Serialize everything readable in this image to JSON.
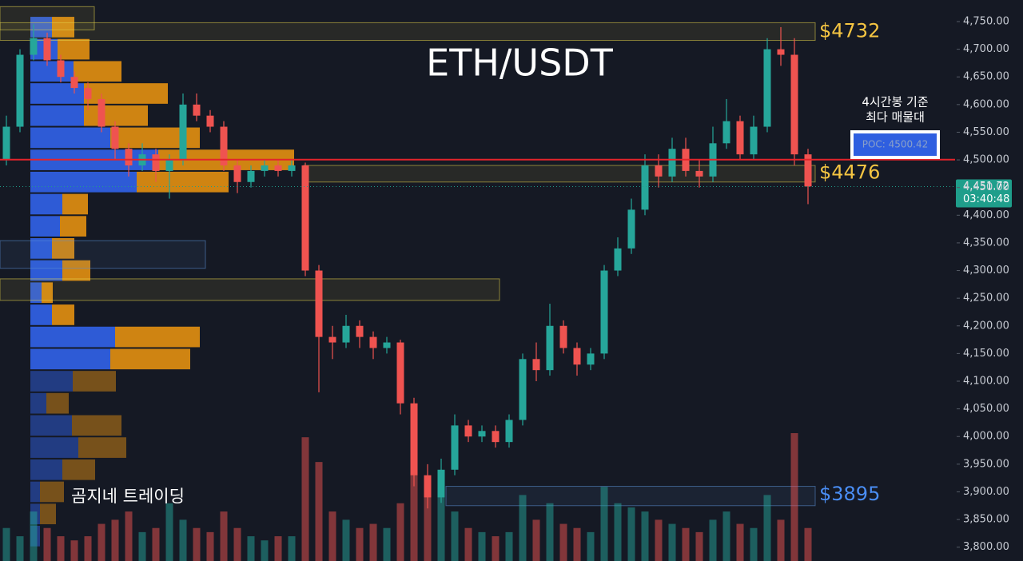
{
  "chart_data": {
    "type": "candlestick",
    "title": "ETH/USDT",
    "open": [
      4500,
      4560,
      4690,
      4720,
      4680,
      4650,
      4630,
      4610,
      4560,
      4520,
      4490,
      4510,
      4480,
      4500,
      4600,
      4580,
      4560,
      4490,
      4460,
      4480,
      4490,
      4480,
      4490,
      4300,
      4180,
      4170,
      4200,
      4180,
      4160,
      4170,
      4060,
      3930,
      3890,
      3940,
      4020,
      4000,
      4010,
      3990,
      4030,
      4140,
      4120,
      4200,
      4160,
      4130,
      4150,
      4300,
      4340,
      4410,
      4490,
      4470,
      4520,
      4480,
      4470,
      4530,
      4570,
      4510,
      4560,
      4700,
      4690,
      4510
    ],
    "high": [
      4580,
      4700,
      4745,
      4730,
      4690,
      4660,
      4640,
      4620,
      4570,
      4530,
      4530,
      4520,
      4510,
      4620,
      4620,
      4590,
      4570,
      4500,
      4490,
      4500,
      4500,
      4500,
      4495,
      4310,
      4200,
      4220,
      4210,
      4190,
      4180,
      4175,
      4070,
      3950,
      3960,
      4040,
      4030,
      4020,
      4020,
      4040,
      4150,
      4170,
      4240,
      4210,
      4170,
      4160,
      4310,
      4360,
      4430,
      4510,
      4510,
      4540,
      4540,
      4500,
      4560,
      4610,
      4580,
      4580,
      4720,
      4740,
      4720,
      4520
    ],
    "low": [
      4490,
      4550,
      4680,
      4670,
      4640,
      4620,
      4590,
      4550,
      4500,
      4470,
      4480,
      4460,
      4430,
      4490,
      4570,
      4550,
      4480,
      4440,
      4450,
      4470,
      4470,
      4470,
      4290,
      4080,
      4140,
      4160,
      4160,
      4140,
      4150,
      4040,
      3910,
      3870,
      3880,
      3930,
      3990,
      3990,
      3980,
      3980,
      4020,
      4100,
      4110,
      4150,
      4110,
      4120,
      4140,
      4290,
      4330,
      4400,
      4450,
      4460,
      4470,
      4450,
      4460,
      4520,
      4500,
      4500,
      4550,
      4670,
      4490,
      4420
    ],
    "close": [
      4560,
      4690,
      4720,
      4680,
      4650,
      4630,
      4610,
      4560,
      4520,
      4490,
      4510,
      4480,
      4500,
      4600,
      4580,
      4560,
      4490,
      4460,
      4480,
      4490,
      4480,
      4490,
      4300,
      4180,
      4170,
      4200,
      4180,
      4160,
      4170,
      4060,
      3930,
      3890,
      3940,
      4020,
      4000,
      4010,
      3990,
      4030,
      4140,
      4120,
      4200,
      4160,
      4130,
      4150,
      4300,
      4340,
      4410,
      4490,
      4470,
      4520,
      4480,
      4470,
      4530,
      4570,
      4510,
      4560,
      4700,
      4690,
      4510,
      4452
    ],
    "volume": [
      40,
      30,
      60,
      40,
      30,
      25,
      30,
      45,
      50,
      60,
      35,
      40,
      70,
      50,
      40,
      35,
      60,
      40,
      30,
      25,
      30,
      30,
      150,
      120,
      60,
      50,
      40,
      45,
      40,
      70,
      110,
      100,
      80,
      60,
      40,
      35,
      30,
      35,
      80,
      50,
      70,
      45,
      40,
      35,
      90,
      70,
      65,
      60,
      50,
      45,
      40,
      35,
      50,
      60,
      45,
      40,
      80,
      50,
      155,
      40
    ],
    "up_color": "#26a69a",
    "down_color": "#ef5350",
    "ylim": [
      3775,
      4789
    ],
    "yticks": [
      {
        "value": 4750,
        "label": "4,750.00"
      },
      {
        "value": 4700,
        "label": "4,700.00"
      },
      {
        "value": 4650,
        "label": "4,650.00"
      },
      {
        "value": 4600,
        "label": "4,600.00"
      },
      {
        "value": 4550,
        "label": "4,550.00"
      },
      {
        "value": 4500,
        "label": "4,500.00"
      },
      {
        "value": 4450,
        "label": "4,450.00"
      },
      {
        "value": 4400,
        "label": "4,400.00"
      },
      {
        "value": 4350,
        "label": "4,350.00"
      },
      {
        "value": 4300,
        "label": "4,300.00"
      },
      {
        "value": 4250,
        "label": "4,250.00"
      },
      {
        "value": 4200,
        "label": "4,200.00"
      },
      {
        "value": 4150,
        "label": "4,150.00"
      },
      {
        "value": 4100,
        "label": "4,100.00"
      },
      {
        "value": 4050,
        "label": "4,050.00"
      },
      {
        "value": 4000,
        "label": "4,000.00"
      },
      {
        "value": 3950,
        "label": "3,950.00"
      },
      {
        "value": 3900,
        "label": "3,900.00"
      },
      {
        "value": 3850,
        "label": "3,850.00"
      },
      {
        "value": 3800,
        "label": "3,800.00"
      }
    ],
    "grid": false,
    "volume_profile": {
      "bins": [
        4760,
        4720,
        4680,
        4640,
        4600,
        4560,
        4520,
        4480,
        4440,
        4400,
        4360,
        4320,
        4280,
        4240,
        4200,
        4160,
        4120,
        4080,
        4040,
        4000,
        3960,
        3920,
        3880,
        3840,
        3800
      ],
      "buy": [
        27,
        34,
        54,
        67,
        67,
        100,
        160,
        133,
        40,
        37,
        27,
        40,
        14,
        27,
        106,
        100,
        53,
        20,
        52,
        60,
        40,
        12,
        12,
        12
      ],
      "sell": [
        28,
        40,
        60,
        105,
        80,
        112,
        170,
        115,
        32,
        33,
        28,
        35,
        14,
        28,
        106,
        100,
        54,
        28,
        62,
        60,
        41,
        30,
        20,
        0
      ],
      "buy_color": "#2f5fe0",
      "sell_color": "#d98a12",
      "value_area": [
        4120,
        4760
      ]
    },
    "zones": [
      {
        "top": 4748,
        "bottom": 4716,
        "color": "#e6d34a"
      },
      {
        "top": 4490,
        "bottom": 4460,
        "color": "#e6d34a"
      },
      {
        "top": 3910,
        "bottom": 3875,
        "color": "#5b8fd6"
      },
      {
        "top": 4354,
        "bottom": 4304,
        "color": "#5b8fd6"
      },
      {
        "top": 4285,
        "bottom": 4246,
        "color": "#e6d34a"
      },
      {
        "top": 4777,
        "bottom": 4735,
        "color": "#e6d34a"
      }
    ],
    "levels": [
      {
        "value": 4732,
        "label": "$4732",
        "color": "#f5c542"
      },
      {
        "value": 4476,
        "label": "$4476",
        "color": "#f5c542"
      },
      {
        "value": 3895,
        "label": "$3895",
        "color": "#4a8ef5"
      }
    ],
    "poc": {
      "value": 4500.42,
      "label": "POC: 4500.42",
      "color": "#e3242b"
    },
    "note": [
      "4시간봉 기준",
      "최다 매물대"
    ],
    "watermark": "곰지네 트레이딩",
    "last_price": {
      "value": 4451.72,
      "label": "4,451.72",
      "countdown": "03:40:48",
      "color": "#1f9e8b"
    }
  }
}
